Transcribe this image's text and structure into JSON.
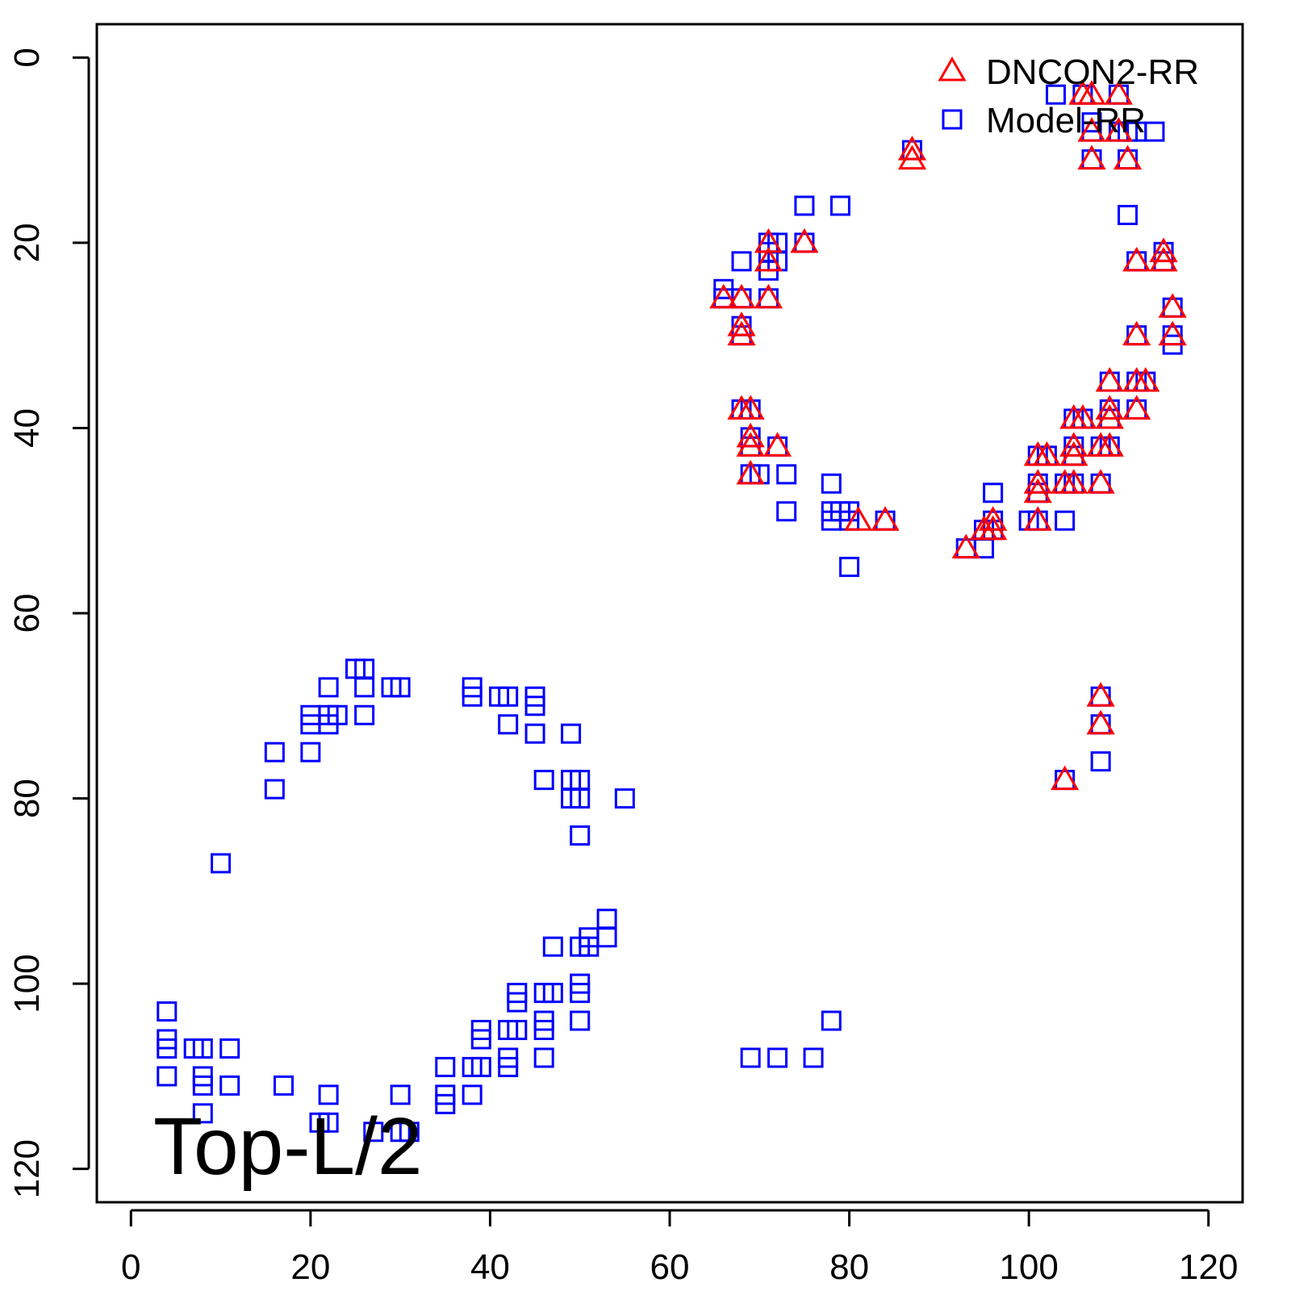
{
  "chart_data": {
    "type": "scatter",
    "title": "",
    "xlabel": "",
    "ylabel": "",
    "xlim": [
      -3.8,
      123.8
    ],
    "ylim": [
      123.6,
      -3.6
    ],
    "y_reversed": true,
    "x_ticks": [
      0,
      20,
      40,
      60,
      80,
      100,
      120
    ],
    "y_ticks": [
      0,
      20,
      40,
      60,
      80,
      100,
      120
    ],
    "grid": false,
    "legend": {
      "position": "top-right"
    },
    "annotation": "Top-L/2",
    "colors": {
      "DNCON2-RR": "#ff0000",
      "Model-RR": "#0000ff"
    },
    "series": [
      {
        "name": "Model-RR",
        "marker": "square",
        "points": [
          [
            4,
            103
          ],
          [
            4,
            106
          ],
          [
            4,
            107
          ],
          [
            4,
            110
          ],
          [
            7,
            107
          ],
          [
            8,
            107
          ],
          [
            8,
            110
          ],
          [
            8,
            111
          ],
          [
            8,
            114
          ],
          [
            10,
            87
          ],
          [
            11,
            107
          ],
          [
            11,
            111
          ],
          [
            16,
            75
          ],
          [
            16,
            79
          ],
          [
            17,
            111
          ],
          [
            20,
            71
          ],
          [
            20,
            72
          ],
          [
            20,
            75
          ],
          [
            21,
            115
          ],
          [
            22,
            68
          ],
          [
            22,
            71
          ],
          [
            22,
            72
          ],
          [
            22,
            112
          ],
          [
            22,
            115
          ],
          [
            23,
            71
          ],
          [
            25,
            66
          ],
          [
            26,
            66
          ],
          [
            26,
            68
          ],
          [
            26,
            71
          ],
          [
            27,
            116
          ],
          [
            29,
            68
          ],
          [
            30,
            68
          ],
          [
            30,
            112
          ],
          [
            30,
            116
          ],
          [
            31,
            116
          ],
          [
            35,
            109
          ],
          [
            35,
            112
          ],
          [
            35,
            113
          ],
          [
            38,
            68
          ],
          [
            38,
            69
          ],
          [
            38,
            109
          ],
          [
            38,
            112
          ],
          [
            39,
            105
          ],
          [
            39,
            106
          ],
          [
            39,
            109
          ],
          [
            41,
            69
          ],
          [
            42,
            69
          ],
          [
            42,
            72
          ],
          [
            42,
            105
          ],
          [
            42,
            108
          ],
          [
            42,
            109
          ],
          [
            43,
            101
          ],
          [
            43,
            102
          ],
          [
            43,
            105
          ],
          [
            45,
            69
          ],
          [
            45,
            70
          ],
          [
            45,
            73
          ],
          [
            46,
            78
          ],
          [
            46,
            101
          ],
          [
            46,
            104
          ],
          [
            46,
            105
          ],
          [
            46,
            108
          ],
          [
            47,
            96
          ],
          [
            47,
            101
          ],
          [
            49,
            73
          ],
          [
            49,
            78
          ],
          [
            49,
            80
          ],
          [
            50,
            78
          ],
          [
            50,
            80
          ],
          [
            50,
            84
          ],
          [
            50,
            96
          ],
          [
            50,
            100
          ],
          [
            50,
            101
          ],
          [
            50,
            104
          ],
          [
            51,
            95
          ],
          [
            51,
            96
          ],
          [
            53,
            93
          ],
          [
            53,
            95
          ],
          [
            55,
            80
          ],
          [
            66,
            25
          ],
          [
            66,
            26
          ],
          [
            68,
            22
          ],
          [
            68,
            26
          ],
          [
            68,
            29
          ],
          [
            68,
            30
          ],
          [
            68,
            38
          ],
          [
            69,
            38
          ],
          [
            69,
            41
          ],
          [
            69,
            42
          ],
          [
            69,
            45
          ],
          [
            70,
            45
          ],
          [
            71,
            20
          ],
          [
            71,
            21
          ],
          [
            71,
            23
          ],
          [
            71,
            26
          ],
          [
            72,
            20
          ],
          [
            72,
            22
          ],
          [
            72,
            42
          ],
          [
            73,
            45
          ],
          [
            73,
            49
          ],
          [
            75,
            16
          ],
          [
            75,
            20
          ],
          [
            69,
            108
          ],
          [
            72,
            108
          ],
          [
            76,
            108
          ],
          [
            78,
            46
          ],
          [
            78,
            49
          ],
          [
            78,
            50
          ],
          [
            78,
            104
          ],
          [
            79,
            16
          ],
          [
            79,
            49
          ],
          [
            80,
            49
          ],
          [
            80,
            50
          ],
          [
            80,
            55
          ],
          [
            84,
            50
          ],
          [
            87,
            10
          ],
          [
            93,
            53
          ],
          [
            95,
            51
          ],
          [
            95,
            53
          ],
          [
            96,
            47
          ],
          [
            96,
            50
          ],
          [
            96,
            51
          ],
          [
            100,
            50
          ],
          [
            101,
            43
          ],
          [
            101,
            46
          ],
          [
            101,
            47
          ],
          [
            101,
            50
          ],
          [
            102,
            43
          ],
          [
            103,
            4
          ],
          [
            104,
            46
          ],
          [
            104,
            50
          ],
          [
            104,
            78
          ],
          [
            105,
            39
          ],
          [
            105,
            42
          ],
          [
            105,
            43
          ],
          [
            105,
            46
          ],
          [
            106,
            4
          ],
          [
            106,
            39
          ],
          [
            107,
            7
          ],
          [
            107,
            8
          ],
          [
            107,
            11
          ],
          [
            108,
            42
          ],
          [
            108,
            46
          ],
          [
            108,
            69
          ],
          [
            108,
            72
          ],
          [
            108,
            76
          ],
          [
            109,
            35
          ],
          [
            109,
            38
          ],
          [
            109,
            39
          ],
          [
            109,
            42
          ],
          [
            110,
            4
          ],
          [
            110,
            8
          ],
          [
            111,
            8
          ],
          [
            111,
            11
          ],
          [
            111,
            17
          ],
          [
            112,
            8
          ],
          [
            112,
            22
          ],
          [
            112,
            30
          ],
          [
            112,
            35
          ],
          [
            112,
            38
          ],
          [
            113,
            35
          ],
          [
            114,
            8
          ],
          [
            115,
            21
          ],
          [
            115,
            22
          ],
          [
            116,
            27
          ],
          [
            116,
            30
          ],
          [
            116,
            31
          ]
        ]
      },
      {
        "name": "DNCON2-RR",
        "marker": "triangle",
        "points": [
          [
            66,
            26
          ],
          [
            68,
            26
          ],
          [
            68,
            29
          ],
          [
            68,
            30
          ],
          [
            68,
            38
          ],
          [
            69,
            38
          ],
          [
            69,
            41
          ],
          [
            69,
            42
          ],
          [
            69,
            45
          ],
          [
            71,
            20
          ],
          [
            71,
            22
          ],
          [
            71,
            26
          ],
          [
            72,
            42
          ],
          [
            75,
            20
          ],
          [
            81,
            50
          ],
          [
            84,
            50
          ],
          [
            87,
            10
          ],
          [
            87,
            11
          ],
          [
            93,
            53
          ],
          [
            95,
            51
          ],
          [
            96,
            50
          ],
          [
            96,
            51
          ],
          [
            101,
            43
          ],
          [
            101,
            46
          ],
          [
            101,
            47
          ],
          [
            101,
            50
          ],
          [
            102,
            43
          ],
          [
            104,
            46
          ],
          [
            104,
            78
          ],
          [
            105,
            39
          ],
          [
            105,
            42
          ],
          [
            105,
            43
          ],
          [
            105,
            46
          ],
          [
            106,
            4
          ],
          [
            106,
            39
          ],
          [
            107,
            4
          ],
          [
            107,
            8
          ],
          [
            107,
            11
          ],
          [
            108,
            42
          ],
          [
            108,
            46
          ],
          [
            108,
            69
          ],
          [
            108,
            72
          ],
          [
            109,
            35
          ],
          [
            109,
            38
          ],
          [
            109,
            39
          ],
          [
            109,
            42
          ],
          [
            110,
            4
          ],
          [
            110,
            8
          ],
          [
            111,
            11
          ],
          [
            112,
            22
          ],
          [
            112,
            30
          ],
          [
            112,
            35
          ],
          [
            112,
            38
          ],
          [
            113,
            35
          ],
          [
            115,
            21
          ],
          [
            115,
            22
          ],
          [
            116,
            27
          ],
          [
            116,
            30
          ]
        ]
      }
    ]
  }
}
